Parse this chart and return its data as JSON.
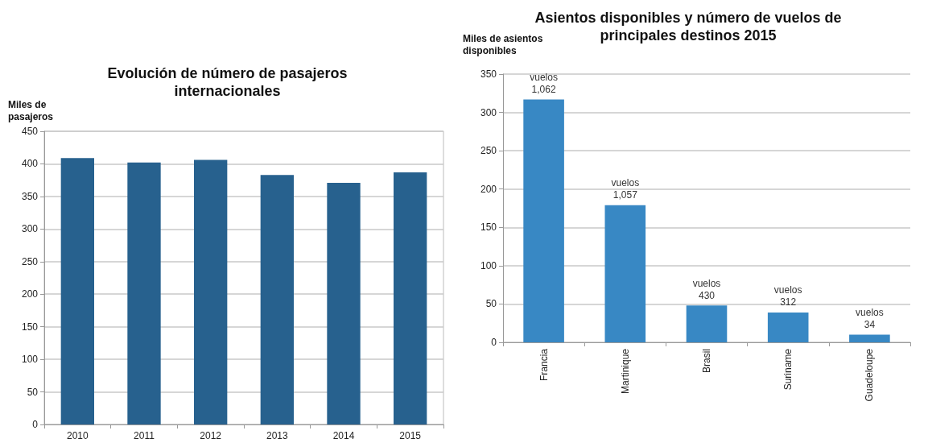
{
  "chart_data": [
    {
      "type": "bar",
      "title": "Evolución de número de pasajeros\ninternacionales",
      "ylabel": "Miles de\npasajeros",
      "categories": [
        "2010",
        "2011",
        "2012",
        "2013",
        "2014",
        "2015"
      ],
      "values": [
        409,
        402,
        406,
        383,
        371,
        387
      ],
      "color": "#27618e",
      "ylim": [
        0,
        450
      ],
      "yticks": [
        0,
        50,
        100,
        150,
        200,
        250,
        300,
        350,
        400,
        450
      ],
      "grid": "y"
    },
    {
      "type": "bar",
      "title": "Asientos disponibles y número de vuelos de\nprincipales destinos 2015",
      "ylabel": "Miles de asientos\ndisponibles",
      "categories": [
        "Francia",
        "Martinique",
        "Brasil",
        "Suriname",
        "Guadeloupe"
      ],
      "values": [
        317,
        179,
        48,
        39,
        10
      ],
      "value_labels": [
        "vuelos\n1,062",
        "vuelos\n1,057",
        "vuelos\n430",
        "vuelos\n312",
        "vuelos\n34"
      ],
      "color": "#3888c4",
      "ylim": [
        0,
        350
      ],
      "yticks": [
        0,
        50,
        100,
        150,
        200,
        250,
        300,
        350
      ],
      "grid": "y"
    }
  ]
}
